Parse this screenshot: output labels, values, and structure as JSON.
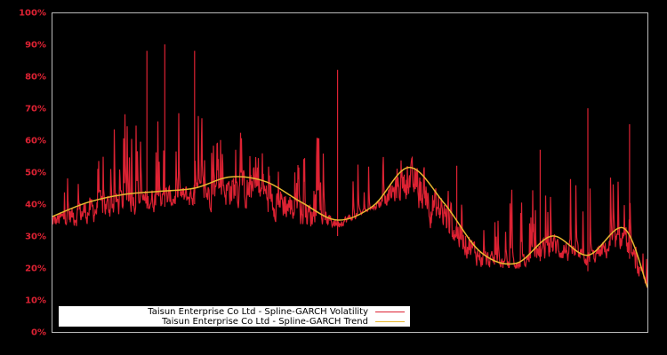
{
  "chart_data": {
    "type": "line",
    "title": "",
    "xlabel": "",
    "ylabel": "",
    "ylim": [
      0,
      100
    ],
    "yticks": [
      "0%",
      "10%",
      "20%",
      "30%",
      "40%",
      "50%",
      "60%",
      "70%",
      "80%",
      "90%",
      "100%"
    ],
    "grid": false,
    "legend_position": "lower-left (inside plot)",
    "x_index": [
      0,
      6,
      12,
      18,
      24,
      30,
      36,
      42,
      48,
      54,
      60,
      66,
      72,
      78,
      84,
      90,
      96,
      100
    ],
    "series": [
      {
        "name": "Taisun Enterprise Co Ltd - Spline-GARCH Volatility",
        "color": "#dd2233",
        "style": "noisy high-frequency line",
        "approx_low_envelope": [
          28,
          27,
          30,
          32,
          33,
          30,
          27,
          24,
          30,
          37,
          32,
          18,
          15,
          17,
          16,
          17,
          18,
          9
        ],
        "approx_high_envelope": [
          62,
          70,
          88,
          90,
          88,
          74,
          65,
          70,
          82,
          65,
          60,
          52,
          57,
          56,
          63,
          70,
          65,
          30
        ],
        "notable_peaks": [
          {
            "x": 16,
            "value": 88
          },
          {
            "x": 19,
            "value": 90
          },
          {
            "x": 24,
            "value": 88
          },
          {
            "x": 48,
            "value": 82
          },
          {
            "x": 68,
            "value": 52
          },
          {
            "x": 82,
            "value": 57
          },
          {
            "x": 90,
            "value": 70
          },
          {
            "x": 97,
            "value": 65
          }
        ]
      },
      {
        "name": "Taisun Enterprise Co Ltd - Spline-GARCH Trend",
        "color": "#e8b830",
        "style": "smooth line",
        "values": [
          36,
          40.5,
          43,
          44,
          45,
          48.5,
          47,
          40.5,
          35,
          39.5,
          51.5,
          40,
          25,
          21.5,
          30,
          24,
          32.5,
          14
        ]
      }
    ]
  },
  "legend": {
    "items": [
      {
        "label": "Taisun Enterprise Co Ltd - Spline-GARCH Volatility",
        "color": "#dd2233"
      },
      {
        "label": "Taisun Enterprise Co Ltd - Spline-GARCH Trend",
        "color": "#e8b830"
      }
    ]
  },
  "colors": {
    "background": "#000000",
    "axis_frame": "#bbbbbb",
    "tick_label": "#dd2233",
    "volatility": "#dd2233",
    "trend": "#e8b830",
    "legend_bg": "#ffffff"
  }
}
